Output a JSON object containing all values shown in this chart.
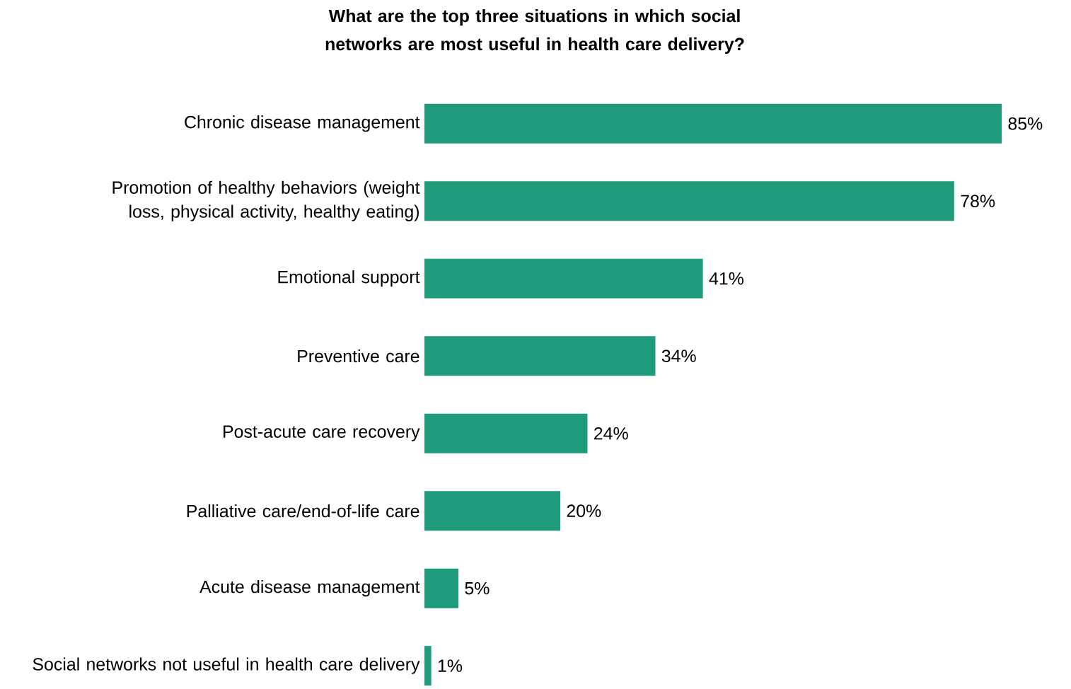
{
  "chart_data": {
    "type": "bar",
    "orientation": "horizontal",
    "title": "What are the top three situations in which social networks are most useful in health care delivery?",
    "categories": [
      "Chronic disease management",
      "Promotion of healthy behaviors (weight loss, physical activity, healthy eating)",
      "Emotional support",
      "Preventive care",
      "Post-acute care recovery",
      "Palliative care/end-of-life care",
      "Acute disease management",
      "Social networks not useful in health care delivery"
    ],
    "values": [
      85,
      78,
      41,
      34,
      24,
      20,
      5,
      1
    ],
    "value_labels": [
      "85%",
      "78%",
      "41%",
      "34%",
      "24%",
      "20%",
      "5%",
      "1%"
    ],
    "color": "#1f9a7a"
  }
}
